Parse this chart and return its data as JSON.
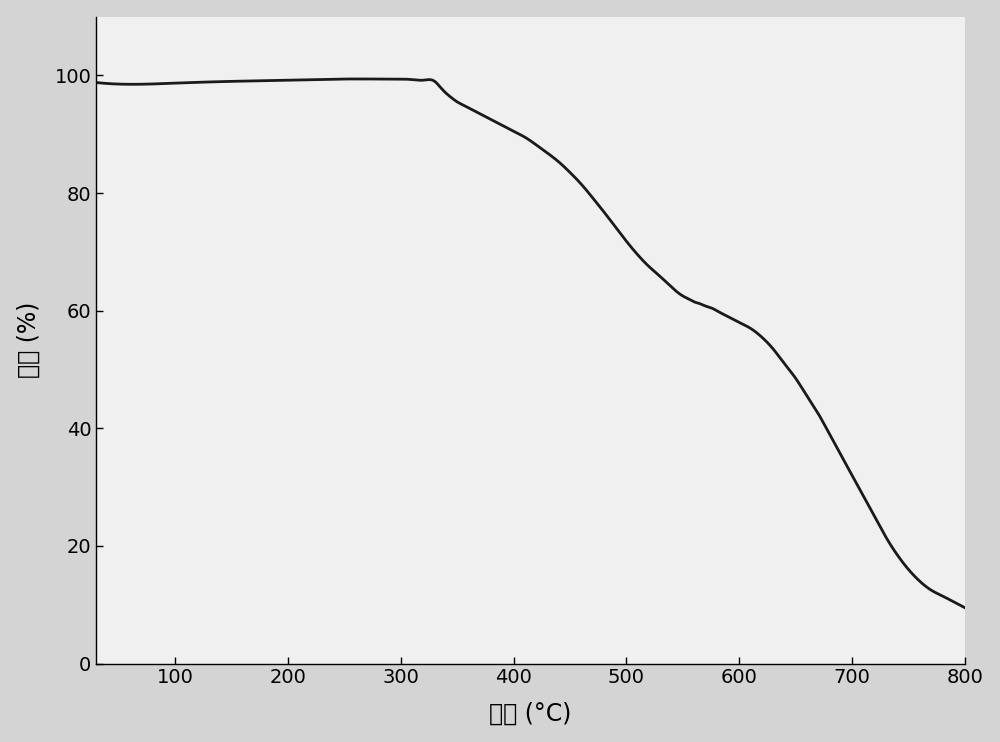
{
  "xlabel": "温度 (°C)",
  "ylabel": "重量 (%)",
  "xlim": [
    30,
    800
  ],
  "ylim": [
    0,
    110
  ],
  "yticks": [
    0,
    20,
    40,
    60,
    80,
    100
  ],
  "xticks": [
    100,
    200,
    300,
    400,
    500,
    600,
    700,
    800
  ],
  "line_color": "#1a1a1a",
  "line_width": 2.0,
  "fig_facecolor": "#d4d4d4",
  "axes_facecolor": "#f0f0f0",
  "curve_points": {
    "x": [
      30,
      60,
      100,
      150,
      200,
      250,
      290,
      310,
      320,
      330,
      335,
      340,
      345,
      350,
      355,
      360,
      365,
      370,
      380,
      390,
      400,
      410,
      420,
      430,
      440,
      450,
      460,
      470,
      480,
      490,
      500,
      510,
      520,
      530,
      540,
      550,
      555,
      560,
      565,
      570,
      575,
      580,
      590,
      600,
      610,
      620,
      630,
      640,
      650,
      660,
      670,
      680,
      690,
      700,
      710,
      720,
      730,
      740,
      750,
      760,
      770,
      780,
      790,
      800
    ],
    "y": [
      98.8,
      98.5,
      98.7,
      99.0,
      99.2,
      99.4,
      99.4,
      99.3,
      99.2,
      99.0,
      98.0,
      97.0,
      96.2,
      95.5,
      95.0,
      94.5,
      94.0,
      93.5,
      92.5,
      91.5,
      90.5,
      89.5,
      88.2,
      86.8,
      85.3,
      83.5,
      81.5,
      79.2,
      76.8,
      74.3,
      71.8,
      69.5,
      67.5,
      65.8,
      64.0,
      62.5,
      62.0,
      61.5,
      61.2,
      60.8,
      60.5,
      60.0,
      59.0,
      58.0,
      57.0,
      55.5,
      53.5,
      51.0,
      48.5,
      45.5,
      42.5,
      39.0,
      35.5,
      32.0,
      28.5,
      25.0,
      21.5,
      18.5,
      16.0,
      14.0,
      12.5,
      11.5,
      10.5,
      9.5
    ]
  }
}
